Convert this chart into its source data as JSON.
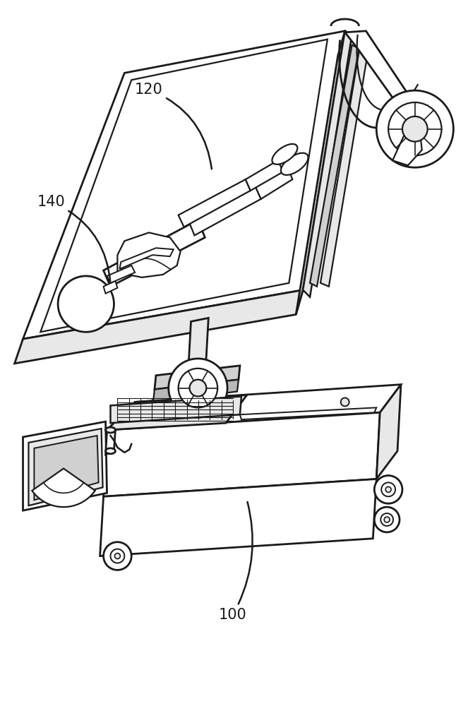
{
  "background_color": "#ffffff",
  "line_color": "#1a1a1a",
  "line_width": 2.0,
  "label_120": "120",
  "label_140": "140",
  "label_100": "100",
  "figsize": [
    6.63,
    10.0
  ],
  "dpi": 100
}
